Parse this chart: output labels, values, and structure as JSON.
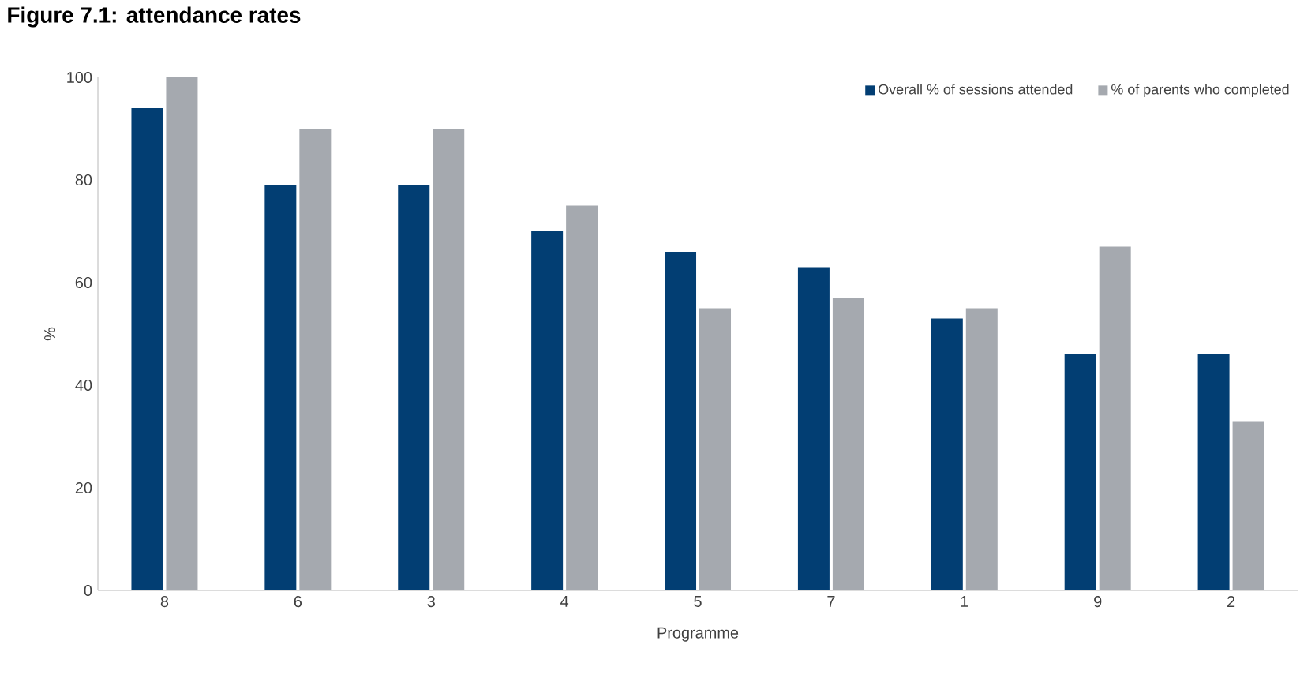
{
  "chart_data": {
    "type": "bar",
    "title": "Figure 7.1: attendance rates",
    "xlabel": "Programme",
    "ylabel": "%",
    "categories": [
      "8",
      "6",
      "3",
      "4",
      "5",
      "7",
      "1",
      "9",
      "2"
    ],
    "series": [
      {
        "name": "Overall % of sessions attended",
        "color": "#023e73",
        "values": [
          94,
          79,
          79,
          70,
          66,
          63,
          53,
          46,
          46
        ]
      },
      {
        "name": "% of parents who completed",
        "color": "#a5a9af",
        "values": [
          100,
          90,
          90,
          75,
          55,
          57,
          55,
          67,
          33
        ]
      }
    ],
    "ylim": [
      0,
      100
    ],
    "yticks": [
      0,
      20,
      40,
      60,
      80,
      100
    ],
    "grid": false,
    "legend": "top right"
  }
}
